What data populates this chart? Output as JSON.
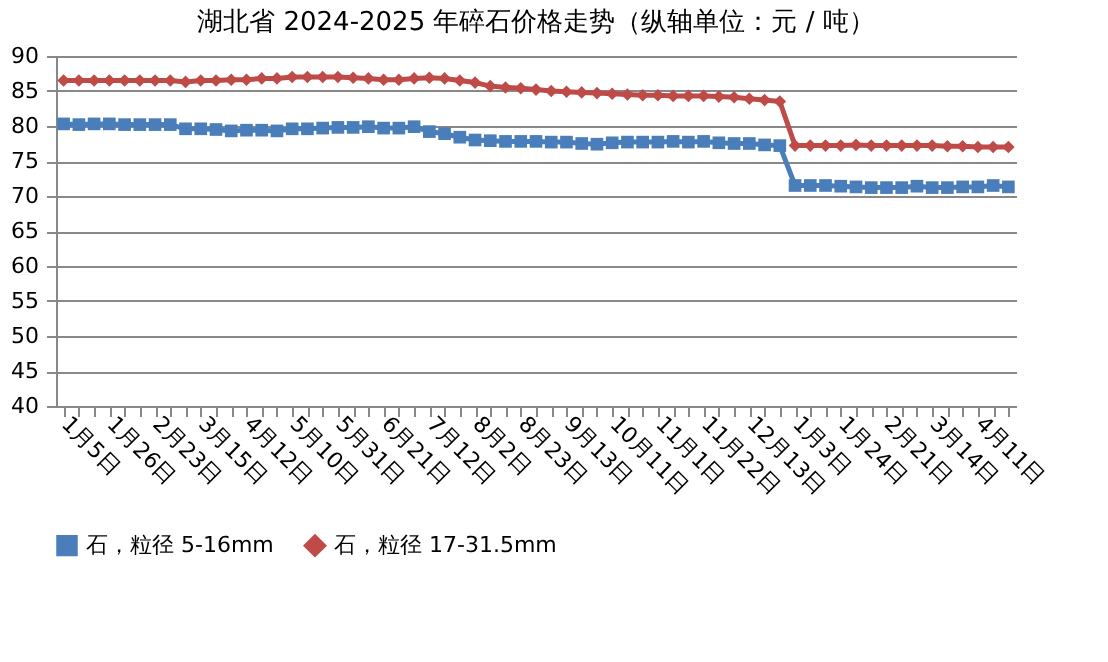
{
  "chart_data": {
    "type": "line",
    "title": "湖北省 2024-2025 年碎石价格走势（纵轴单位：元 / 吨）",
    "categories": [
      "1月5日",
      null,
      null,
      "1月26日",
      null,
      null,
      "2月23日",
      null,
      null,
      "3月15日",
      null,
      null,
      "4月12日",
      null,
      null,
      "5月10日",
      null,
      null,
      "5月31日",
      null,
      null,
      "6月21日",
      null,
      null,
      "7月12日",
      null,
      null,
      "8月2日",
      null,
      null,
      "8月23日",
      null,
      null,
      "9月13日",
      null,
      null,
      "10月11日",
      null,
      null,
      "11月1日",
      null,
      null,
      "11月22日",
      null,
      null,
      "12月13日",
      null,
      null,
      "1月3日",
      null,
      null,
      "1月24日",
      null,
      null,
      "2月21日",
      null,
      null,
      "3月14日",
      null,
      null,
      "4月11日",
      null,
      null
    ],
    "series": [
      {
        "name": "石，粒径 5-16mm",
        "color": "#4a7ebb",
        "marker": "square",
        "values": [
          80.3,
          80.2,
          80.3,
          80.3,
          80.2,
          80.2,
          80.2,
          80.2,
          79.6,
          79.6,
          79.5,
          79.3,
          79.4,
          79.4,
          79.3,
          79.6,
          79.6,
          79.7,
          79.8,
          79.8,
          79.9,
          79.7,
          79.7,
          79.9,
          79.2,
          78.9,
          78.4,
          78.0,
          77.9,
          77.8,
          77.8,
          77.8,
          77.7,
          77.7,
          77.5,
          77.4,
          77.6,
          77.7,
          77.7,
          77.7,
          77.8,
          77.7,
          77.8,
          77.6,
          77.5,
          77.5,
          77.3,
          77.2,
          71.5,
          71.5,
          71.5,
          71.4,
          71.3,
          71.2,
          71.2,
          71.2,
          71.4,
          71.2,
          71.2,
          71.3,
          71.3,
          71.5,
          71.3
        ]
      },
      {
        "name": "石，粒径 17-31.5mm",
        "color": "#be4b48",
        "marker": "diamond",
        "values": [
          86.5,
          86.5,
          86.5,
          86.5,
          86.5,
          86.5,
          86.5,
          86.5,
          86.3,
          86.5,
          86.5,
          86.6,
          86.6,
          86.8,
          86.8,
          87.0,
          87.0,
          87.0,
          87.0,
          86.9,
          86.8,
          86.6,
          86.6,
          86.8,
          86.9,
          86.8,
          86.5,
          86.2,
          85.7,
          85.5,
          85.4,
          85.2,
          85.0,
          84.9,
          84.8,
          84.7,
          84.6,
          84.5,
          84.4,
          84.4,
          84.3,
          84.3,
          84.3,
          84.2,
          84.1,
          83.9,
          83.7,
          83.5,
          77.2,
          77.2,
          77.2,
          77.2,
          77.3,
          77.2,
          77.2,
          77.2,
          77.2,
          77.2,
          77.1,
          77.1,
          77.0,
          77.0,
          77.0
        ]
      }
    ],
    "ylim": [
      40,
      90
    ],
    "yticks": [
      40,
      45,
      50,
      55,
      60,
      65,
      70,
      75,
      80,
      85,
      90
    ],
    "grid": "y",
    "legend": "bottom",
    "line_style": "solid"
  }
}
